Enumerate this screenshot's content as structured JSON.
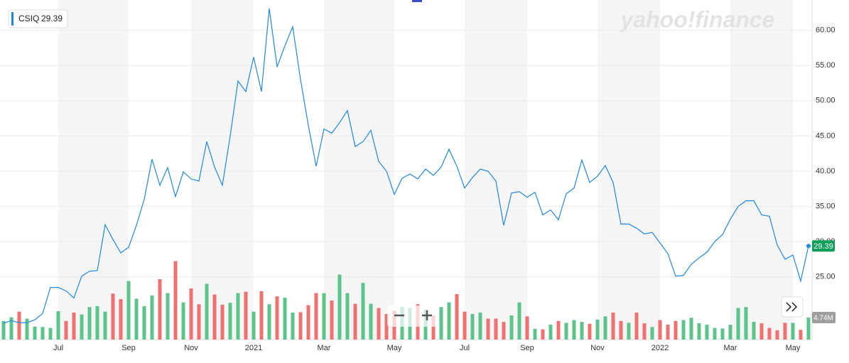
{
  "chart_data": {
    "type": "line",
    "symbol": "CSIQ",
    "watermark": "yahoo!finance",
    "categories": [
      null,
      null,
      null,
      null,
      null,
      null,
      null,
      "Jul",
      null,
      null,
      null,
      null,
      null,
      null,
      null,
      null,
      "Sep",
      null,
      null,
      null,
      null,
      null,
      null,
      null,
      "Nov",
      null,
      null,
      null,
      null,
      null,
      null,
      null,
      "2021",
      null,
      null,
      null,
      null,
      null,
      null,
      null,
      null,
      "Mar",
      null,
      null,
      null,
      null,
      null,
      null,
      null,
      null,
      "May",
      null,
      null,
      null,
      null,
      null,
      null,
      null,
      null,
      "Jul",
      null,
      null,
      null,
      null,
      null,
      null,
      null,
      "Sep",
      null,
      null,
      null,
      null,
      null,
      null,
      null,
      null,
      "Nov",
      null,
      null,
      null,
      null,
      null,
      null,
      null,
      "2022",
      null,
      null,
      null,
      null,
      null,
      null,
      null,
      null,
      "Mar",
      null,
      null,
      null,
      null,
      null,
      null,
      null,
      "May",
      null,
      null
    ],
    "series": [
      {
        "name": "CSIQ",
        "color": "#1e88e5",
        "values": [
          18.4,
          18.8,
          18.5,
          18.5,
          18.9,
          19.8,
          23.5,
          23.5,
          23.0,
          22.0,
          25.1,
          25.8,
          25.9,
          32.4,
          30.3,
          28.4,
          29.2,
          32.3,
          36.0,
          41.7,
          38.0,
          40.5,
          36.4,
          39.9,
          38.9,
          38.6,
          44.2,
          40.6,
          38.0,
          45.0,
          52.8,
          51.3,
          56.2,
          51.3,
          63.1,
          54.8,
          57.8,
          60.5,
          53.0,
          46.5,
          40.7,
          46.0,
          45.4,
          46.9,
          48.6,
          43.5,
          44.2,
          45.8,
          41.4,
          40.0,
          36.7,
          39.0,
          39.6,
          38.9,
          40.3,
          39.4,
          40.6,
          43.1,
          40.7,
          37.6,
          39.1,
          40.3,
          40.0,
          38.6,
          32.3,
          36.9,
          37.1,
          36.3,
          37.0,
          33.8,
          34.5,
          33.1,
          36.8,
          37.6,
          41.6,
          38.4,
          39.3,
          40.8,
          38.4,
          32.5,
          32.5,
          31.9,
          31.1,
          31.3,
          29.8,
          28.3,
          25.1,
          25.2,
          26.8,
          27.7,
          28.5,
          30.0,
          31.0,
          33.2,
          35.0,
          35.8,
          35.8,
          33.8,
          33.6,
          29.5,
          27.5,
          28.1,
          24.4,
          29.39
        ]
      },
      {
        "name": "Volume",
        "axis": "y2",
        "up_color": "#5bc48a",
        "down_color": "#f07070",
        "values": [
          4.0,
          4.8,
          6.0,
          4.5,
          2.8,
          2.7,
          2.5,
          6.1,
          4.0,
          5.8,
          5.4,
          7.0,
          7.2,
          6.0,
          9.9,
          8.7,
          12.6,
          8.8,
          7.2,
          9.5,
          13.0,
          10.0,
          16.9,
          8.0,
          11.0,
          7.6,
          12.0,
          9.7,
          7.5,
          7.9,
          10.0,
          10.3,
          6.0,
          10.4,
          7.6,
          9.3,
          9.0,
          5.8,
          5.9,
          7.4,
          10.0,
          10.0,
          8.4,
          14.0,
          10.0,
          7.7,
          12.2,
          7.7,
          6.8,
          5.5,
          6.2,
          7.0,
          6.8,
          7.6,
          6.5,
          5.2,
          7.0,
          8.0,
          9.8,
          6.0,
          5.5,
          5.8,
          4.5,
          4.5,
          3.8,
          5.2,
          8.0,
          5.0,
          2.3,
          2.2,
          3.2,
          4.0,
          3.6,
          4.2,
          3.8,
          3.4,
          4.3,
          5.0,
          5.8,
          4.0,
          3.6,
          5.8,
          3.5,
          2.7,
          4.2,
          3.2,
          4.0,
          4.2,
          4.7,
          3.5,
          3.2,
          2.5,
          2.4,
          3.2,
          6.8,
          7.0,
          3.8,
          3.5,
          2.5,
          2.0,
          3.6,
          3.6,
          2.1,
          4.74
        ],
        "value_labels": [
          null,
          null,
          null,
          null,
          null,
          null,
          null,
          null,
          null,
          null,
          null,
          null,
          null,
          null,
          null,
          null,
          null,
          null,
          null,
          null,
          null,
          null,
          null,
          null,
          null,
          null,
          null,
          null,
          null,
          null,
          null,
          null,
          null,
          null,
          null,
          null,
          null,
          null,
          null,
          null,
          null,
          null,
          null,
          null,
          null,
          null,
          null,
          null,
          null,
          null,
          null,
          null,
          null,
          null,
          null,
          null,
          null,
          null,
          null,
          null,
          null,
          null,
          null,
          null,
          null,
          null,
          null,
          null,
          null,
          null,
          null,
          null,
          null,
          null,
          null,
          null,
          null,
          null,
          null,
          null,
          null,
          null,
          null,
          null,
          null,
          null,
          null,
          null,
          null,
          null,
          null,
          null,
          null,
          null,
          null,
          null,
          null,
          null,
          null,
          null,
          null,
          null,
          null,
          "4.74M"
        ]
      }
    ],
    "ylim": [
      16.1,
      64.3
    ],
    "yticks": [
      {
        "value": 25,
        "label": "25.00"
      },
      {
        "value": 30,
        "label": "30.00"
      },
      {
        "value": 35,
        "label": "35.00"
      },
      {
        "value": 40,
        "label": "40.00"
      },
      {
        "value": 45,
        "label": "45.00"
      },
      {
        "value": 50,
        "label": "50.00"
      },
      {
        "value": 55,
        "label": "55.00"
      },
      {
        "value": 60,
        "label": "60.00"
      }
    ],
    "y2lim": [
      0,
      73.1
    ],
    "grid": true
  }
}
